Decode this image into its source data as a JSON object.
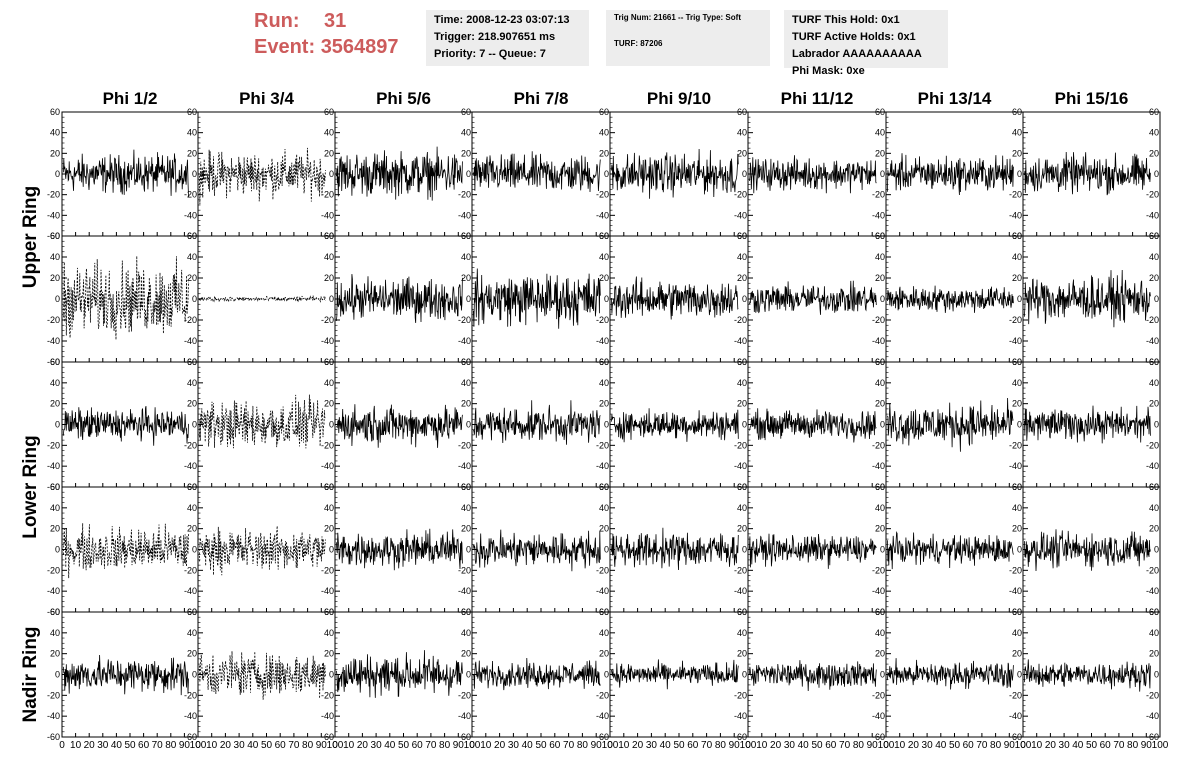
{
  "run": {
    "run_label": "Run:",
    "run_value": "31",
    "event_label": "Event:",
    "event_value": "3564897"
  },
  "info_time": {
    "time": "Time: 2008-12-23 03:07:13",
    "trigger": "Trigger: 218.907651 ms",
    "priority": "Priority: 7 -- Queue: 7"
  },
  "info_trig": {
    "trig": "Trig Num: 21661 -- Trig Type: Soft",
    "turf": "TURF: 87206"
  },
  "info_turf": {
    "this_hold": "TURF This Hold: 0x1",
    "active_holds": "TURF Active Holds: 0x1",
    "labrador": "Labrador AAAAAAAAAA",
    "phi_mask": "Phi Mask: 0xe"
  },
  "colors": {
    "run_text": "#cd5c5c",
    "info_bg": "#ededed",
    "trace": "#000000"
  },
  "chart_data": {
    "type": "line",
    "columns": [
      "Phi 1/2",
      "Phi 3/4",
      "Phi 5/6",
      "Phi 7/8",
      "Phi 9/10",
      "Phi 11/12",
      "Phi 13/14",
      "Phi 15/16"
    ],
    "rings": [
      "Upper Ring",
      "Upper Ring",
      "Lower Ring",
      "Lower Ring",
      "Nadir Ring"
    ],
    "ring_labels": [
      {
        "label": "Upper Ring",
        "rows": [
          0,
          1
        ]
      },
      {
        "label": "Lower Ring",
        "rows": [
          2,
          3
        ]
      },
      {
        "label": "Nadir Ring",
        "rows": [
          4
        ]
      }
    ],
    "xlim": [
      0,
      100
    ],
    "ylim": [
      -60,
      60
    ],
    "x_ticks": [
      0,
      10,
      20,
      30,
      40,
      50,
      60,
      70,
      80,
      90,
      100
    ],
    "x_tick_labels": [
      "0",
      "10",
      "20",
      "30",
      "40",
      "50",
      "60",
      "70",
      "80",
      "90",
      "100"
    ],
    "y_ticks": [
      -60,
      -40,
      -20,
      0,
      20,
      40,
      60
    ],
    "y_tick_labels": [
      "-60",
      "-40",
      "-20",
      "0",
      "20",
      "40",
      "60"
    ],
    "samples_per_trace": 260,
    "dashed_panels": [
      [
        0,
        1
      ],
      [
        1,
        0
      ],
      [
        1,
        1
      ],
      [
        2,
        1
      ],
      [
        3,
        0
      ],
      [
        3,
        1
      ],
      [
        4,
        1
      ]
    ],
    "amplitudes": [
      [
        12,
        14,
        14,
        12,
        13,
        10,
        11,
        12
      ],
      [
        22,
        1.5,
        13,
        16,
        12,
        9,
        8,
        14
      ],
      [
        10,
        15,
        12,
        11,
        9,
        9,
        13,
        10
      ],
      [
        14,
        13,
        11,
        11,
        11,
        9,
        9,
        11
      ],
      [
        11,
        14,
        13,
        8,
        7,
        8,
        8,
        8
      ]
    ]
  }
}
